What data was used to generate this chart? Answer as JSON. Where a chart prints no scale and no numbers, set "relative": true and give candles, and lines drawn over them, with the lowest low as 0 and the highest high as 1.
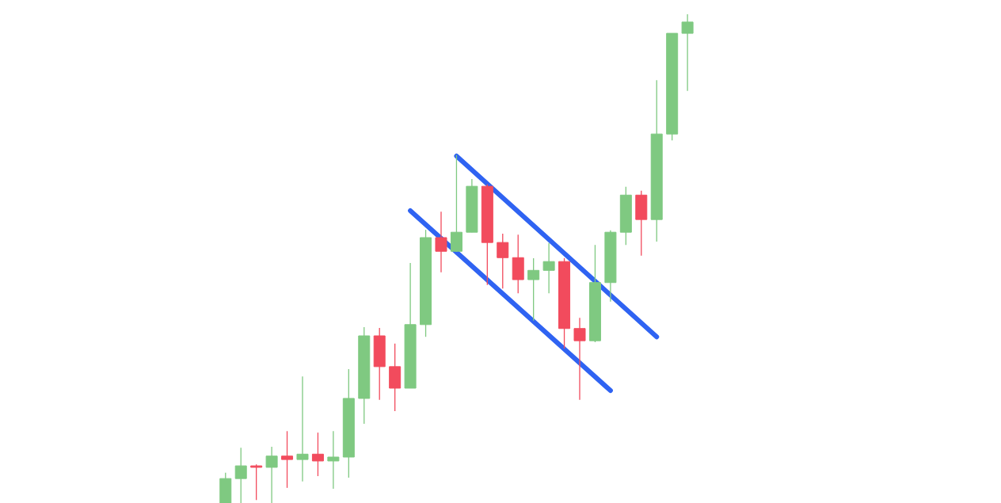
{
  "chart_data": {
    "type": "candlestick",
    "relative": true,
    "categories": [
      null,
      null,
      null,
      null,
      null,
      null,
      null,
      null,
      null,
      null,
      null,
      null,
      null,
      null,
      null,
      null,
      null,
      null,
      null,
      null,
      null,
      null,
      null,
      null,
      null,
      null,
      null,
      null,
      null,
      null,
      null
    ],
    "ohlc": [
      [
        0,
        0.062,
        0,
        0.05
      ],
      [
        0.05,
        0.113,
        0,
        0.076
      ],
      [
        0.076,
        0.079,
        0.006,
        0.073
      ],
      [
        0.073,
        0.115,
        0,
        0.096
      ],
      [
        0.096,
        0.147,
        0.031,
        0.089
      ],
      [
        0.089,
        0.259,
        0.044,
        0.1
      ],
      [
        0.1,
        0.144,
        0.055,
        0.086
      ],
      [
        0.086,
        0.147,
        0.029,
        0.094
      ],
      [
        0.094,
        0.274,
        0.052,
        0.214
      ],
      [
        0.214,
        0.36,
        0.162,
        0.342
      ],
      [
        0.342,
        0.358,
        0.211,
        0.279
      ],
      [
        0.279,
        0.326,
        0.188,
        0.235
      ],
      [
        0.235,
        0.491,
        0.235,
        0.365
      ],
      [
        0.365,
        0.559,
        0.34,
        0.543
      ],
      [
        0.543,
        0.596,
        0.472,
        0.515
      ],
      [
        0.515,
        0.712,
        0.514,
        0.554
      ],
      [
        0.554,
        0.663,
        0.554,
        0.648
      ],
      [
        0.648,
        0.652,
        0.446,
        0.533
      ],
      [
        0.533,
        0.551,
        0.439,
        0.502
      ],
      [
        0.502,
        0.549,
        0.429,
        0.457
      ],
      [
        0.457,
        0.501,
        0.373,
        0.476
      ],
      [
        0.476,
        0.532,
        0.429,
        0.494
      ],
      [
        0.494,
        0.501,
        0.316,
        0.357
      ],
      [
        0.357,
        0.379,
        0.211,
        0.332
      ],
      [
        0.332,
        0.528,
        0.329,
        0.451
      ],
      [
        0.451,
        0.558,
        0.412,
        0.554
      ],
      [
        0.554,
        0.647,
        0.528,
        0.63
      ],
      [
        0.63,
        0.639,
        0.506,
        0.58
      ],
      [
        0.58,
        0.865,
        0.535,
        0.755
      ],
      [
        0.755,
        0.961,
        0.742,
        0.961
      ],
      [
        0.961,
        1,
        0.843,
        0.984
      ]
    ],
    "colors": [
      "#7fc981",
      "#7fc981",
      "#f24b5d",
      "#7fc981",
      "#f24b5d",
      "#7fc981",
      "#f24b5d",
      "#7fc981",
      "#7fc981",
      "#7fc981",
      "#f24b5d",
      "#f24b5d",
      "#7fc981",
      "#7fc981",
      "#f24b5d",
      "#7fc981",
      "#7fc981",
      "#f24b5d",
      "#f24b5d",
      "#f24b5d",
      "#7fc981",
      "#7fc981",
      "#f24b5d",
      "#f24b5d",
      "#7fc981",
      "#7fc981",
      "#7fc981",
      "#f24b5d",
      "#7fc981",
      "#7fc981",
      "#7fc981"
    ],
    "series": [
      {
        "type": "line",
        "color": "#2f63f2",
        "values": [
          null,
          null,
          null,
          null,
          null,
          null,
          null,
          null,
          null,
          null,
          null,
          null,
          0.598,
          null,
          null,
          null,
          null,
          null,
          null,
          null,
          null,
          null,
          null,
          null,
          null,
          0.23,
          null,
          null,
          null,
          null,
          null
        ]
      },
      {
        "type": "line",
        "color": "#2f63f2",
        "values": [
          null,
          null,
          null,
          null,
          null,
          null,
          null,
          null,
          null,
          null,
          null,
          null,
          null,
          null,
          null,
          0.71,
          null,
          null,
          null,
          null,
          null,
          null,
          null,
          null,
          null,
          null,
          null,
          null,
          0.34,
          null,
          null
        ]
      }
    ]
  }
}
